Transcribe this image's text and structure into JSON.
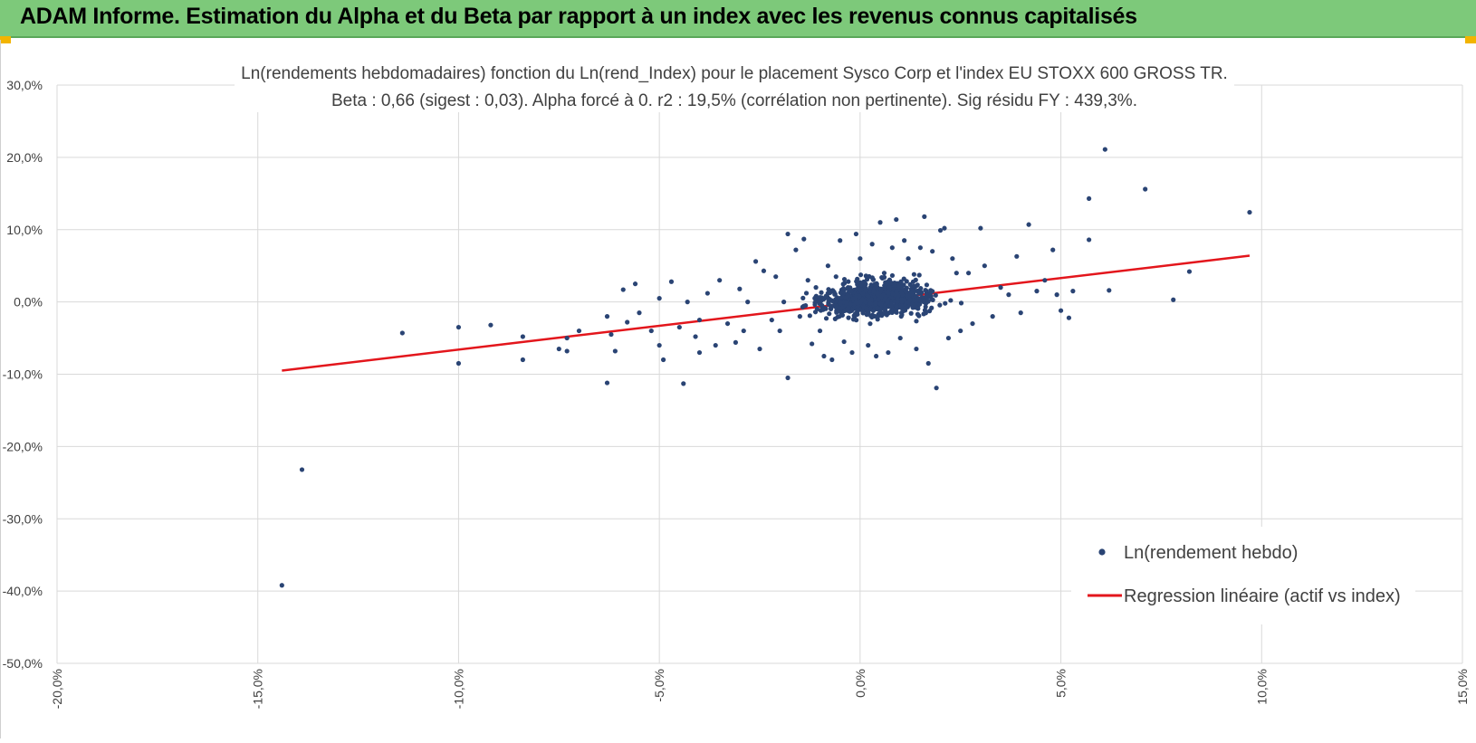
{
  "header": {
    "title": "ADAM Informe. Estimation du Alpha et du Beta par rapport à un index avec les revenus connus capitalisés"
  },
  "colors": {
    "banner": "#7dc97a",
    "points": "#2a4474",
    "regression": "#e3161c",
    "grid": "#d9d9d9",
    "corner_marker": "#f2b400"
  },
  "chart_data": {
    "type": "scatter",
    "title": "Ln(rendements hebdomadaires) fonction du Ln(rend_Index) pour le placement Sysco Corp et l'index EU STOXX 600 GROSS TR.",
    "subtitle": "Beta : 0,66 (sigest : 0,03). Alpha forcé à 0. r2 : 19,5% (corrélation non pertinente). Sig résidu FY : 439,3%.",
    "xlabel": "",
    "ylabel": "",
    "xlim": [
      -0.2,
      0.15
    ],
    "ylim": [
      -0.5,
      0.3
    ],
    "x_ticks": [
      -0.2,
      -0.15,
      -0.1,
      -0.05,
      0.0,
      0.05,
      0.1,
      0.15
    ],
    "x_tick_labels": [
      "-20,0%",
      "-15,0%",
      "-10,0%",
      "-5,0%",
      "0,0%",
      "5,0%",
      "10,0%",
      "15,0%"
    ],
    "y_ticks": [
      0.3,
      0.2,
      0.1,
      0.0,
      -0.1,
      -0.2,
      -0.3,
      -0.4,
      -0.5
    ],
    "y_tick_labels": [
      "30,0%",
      "20,0%",
      "10,0%",
      "0,0%",
      "-10,0%",
      "-20,0%",
      "-30,0%",
      "-40,0%",
      "-50,0%"
    ],
    "grid": true,
    "legend_position": "bottom-right",
    "series": [
      {
        "name": "Ln(rendement hebdo)",
        "kind": "scatter",
        "color": "#2a4474",
        "cluster_note": "dense cloud of roughly 1000 weekly observations centred near (0,5%; 0,5%)",
        "points": [
          [
            -0.144,
            -0.392
          ],
          [
            -0.139,
            -0.232
          ],
          [
            -0.114,
            -0.043
          ],
          [
            -0.1,
            -0.035
          ],
          [
            -0.1,
            -0.085
          ],
          [
            -0.092,
            -0.032
          ],
          [
            -0.084,
            -0.048
          ],
          [
            -0.084,
            -0.08
          ],
          [
            -0.075,
            -0.065
          ],
          [
            -0.073,
            -0.068
          ],
          [
            -0.073,
            -0.05
          ],
          [
            -0.07,
            -0.04
          ],
          [
            -0.063,
            -0.02
          ],
          [
            -0.063,
            -0.112
          ],
          [
            -0.062,
            -0.045
          ],
          [
            -0.061,
            -0.068
          ],
          [
            -0.059,
            0.017
          ],
          [
            -0.058,
            -0.028
          ],
          [
            -0.056,
            0.025
          ],
          [
            -0.055,
            -0.015
          ],
          [
            -0.052,
            -0.04
          ],
          [
            -0.05,
            -0.06
          ],
          [
            -0.05,
            0.005
          ],
          [
            -0.049,
            -0.08
          ],
          [
            -0.047,
            0.028
          ],
          [
            -0.045,
            -0.035
          ],
          [
            -0.044,
            -0.113
          ],
          [
            -0.043,
            0.0
          ],
          [
            -0.041,
            -0.048
          ],
          [
            -0.04,
            -0.025
          ],
          [
            -0.04,
            -0.07
          ],
          [
            -0.038,
            0.012
          ],
          [
            -0.036,
            -0.06
          ],
          [
            -0.035,
            0.03
          ],
          [
            -0.033,
            -0.03
          ],
          [
            -0.031,
            -0.056
          ],
          [
            -0.03,
            0.018
          ],
          [
            -0.029,
            -0.04
          ],
          [
            -0.028,
            0.0
          ],
          [
            -0.026,
            0.056
          ],
          [
            -0.025,
            -0.065
          ],
          [
            -0.024,
            0.043
          ],
          [
            -0.022,
            -0.025
          ],
          [
            -0.021,
            0.035
          ],
          [
            -0.02,
            -0.04
          ],
          [
            -0.019,
            0.0
          ],
          [
            -0.018,
            0.094
          ],
          [
            -0.018,
            -0.105
          ],
          [
            -0.016,
            0.072
          ],
          [
            -0.015,
            -0.02
          ],
          [
            -0.014,
            0.087
          ],
          [
            -0.013,
            0.03
          ],
          [
            -0.012,
            -0.058
          ],
          [
            -0.011,
            0.02
          ],
          [
            -0.01,
            -0.04
          ],
          [
            -0.009,
            -0.075
          ],
          [
            -0.008,
            0.05
          ],
          [
            -0.007,
            -0.08
          ],
          [
            -0.006,
            0.035
          ],
          [
            -0.005,
            0.085
          ],
          [
            -0.004,
            -0.055
          ],
          [
            -0.003,
            0.02
          ],
          [
            -0.002,
            -0.07
          ],
          [
            -0.001,
            0.094
          ],
          [
            0.0,
            0.06
          ],
          [
            0.002,
            -0.06
          ],
          [
            0.003,
            0.08
          ],
          [
            0.004,
            -0.075
          ],
          [
            0.005,
            0.11
          ],
          [
            0.006,
            0.04
          ],
          [
            0.007,
            -0.07
          ],
          [
            0.008,
            0.075
          ],
          [
            0.009,
            0.114
          ],
          [
            0.01,
            -0.05
          ],
          [
            0.011,
            0.085
          ],
          [
            0.012,
            0.06
          ],
          [
            0.014,
            -0.065
          ],
          [
            0.015,
            0.075
          ],
          [
            0.016,
            0.118
          ],
          [
            0.017,
            -0.085
          ],
          [
            0.018,
            0.07
          ],
          [
            0.019,
            -0.119
          ],
          [
            0.02,
            0.099
          ],
          [
            0.021,
            0.102
          ],
          [
            0.022,
            -0.05
          ],
          [
            0.023,
            0.06
          ],
          [
            0.024,
            0.04
          ],
          [
            0.025,
            -0.04
          ],
          [
            0.027,
            0.04
          ],
          [
            0.028,
            -0.03
          ],
          [
            0.03,
            0.102
          ],
          [
            0.031,
            0.05
          ],
          [
            0.033,
            -0.02
          ],
          [
            0.035,
            0.02
          ],
          [
            0.037,
            0.01
          ],
          [
            0.039,
            0.063
          ],
          [
            0.04,
            -0.015
          ],
          [
            0.042,
            0.107
          ],
          [
            0.044,
            0.015
          ],
          [
            0.046,
            0.03
          ],
          [
            0.048,
            0.072
          ],
          [
            0.049,
            0.01
          ],
          [
            0.05,
            -0.012
          ],
          [
            0.052,
            -0.022
          ],
          [
            0.053,
            0.015
          ],
          [
            0.057,
            0.086
          ],
          [
            0.057,
            0.143
          ],
          [
            0.061,
            0.211
          ],
          [
            0.062,
            0.016
          ],
          [
            0.071,
            0.156
          ],
          [
            0.078,
            0.003
          ],
          [
            0.082,
            0.042
          ],
          [
            0.097,
            0.124
          ]
        ]
      },
      {
        "name": "Regression linéaire (actif vs index)",
        "kind": "line",
        "color": "#e3161c",
        "x": [
          -0.144,
          0.097
        ],
        "y": [
          -0.095,
          0.064
        ]
      }
    ]
  }
}
